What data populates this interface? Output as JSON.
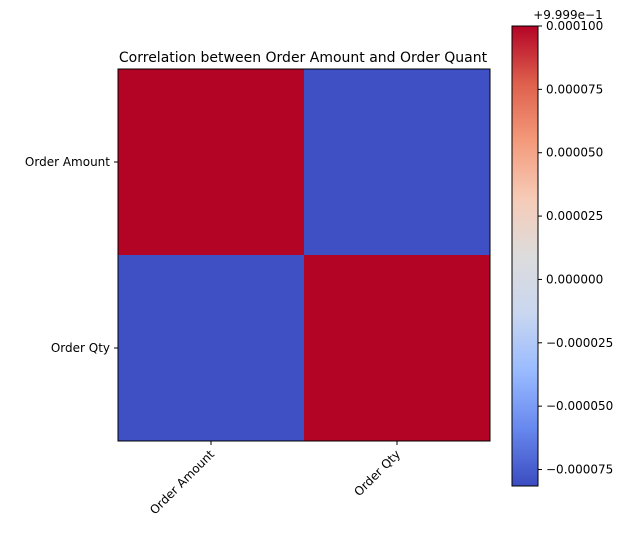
{
  "chart_data": {
    "type": "heatmap",
    "title": "Correlation between Order Amount and Order Quant",
    "x_categories": [
      "Order Amount",
      "Order Qty"
    ],
    "y_categories": [
      "Order Amount",
      "Order Qty"
    ],
    "values": [
      [
        1.0,
        0.99982
      ],
      [
        0.99982,
        1.0
      ]
    ],
    "colormap": "coolwarm",
    "colormap_stops": [
      "#3b4cc0",
      "#6788ee",
      "#9abbff",
      "#c9d7f0",
      "#dddcdc",
      "#f6cbb7",
      "#f49a7b",
      "#de604d",
      "#b40426"
    ],
    "colorbar": {
      "offset_label": "+9.999e−1",
      "vmin_offset": -8.15e-05,
      "vmax_offset": 0.0001,
      "ticks": [
        {
          "value": 0.0001,
          "label": "0.000100"
        },
        {
          "value": 7.5e-05,
          "label": "0.000075"
        },
        {
          "value": 5e-05,
          "label": "0.000050"
        },
        {
          "value": 2.5e-05,
          "label": "0.000025"
        },
        {
          "value": 0.0,
          "label": "0.000000"
        },
        {
          "value": -2.5e-05,
          "label": "−0.000025"
        },
        {
          "value": -5e-05,
          "label": "−0.000050"
        },
        {
          "value": -7.5e-05,
          "label": "−0.000075"
        }
      ]
    }
  }
}
